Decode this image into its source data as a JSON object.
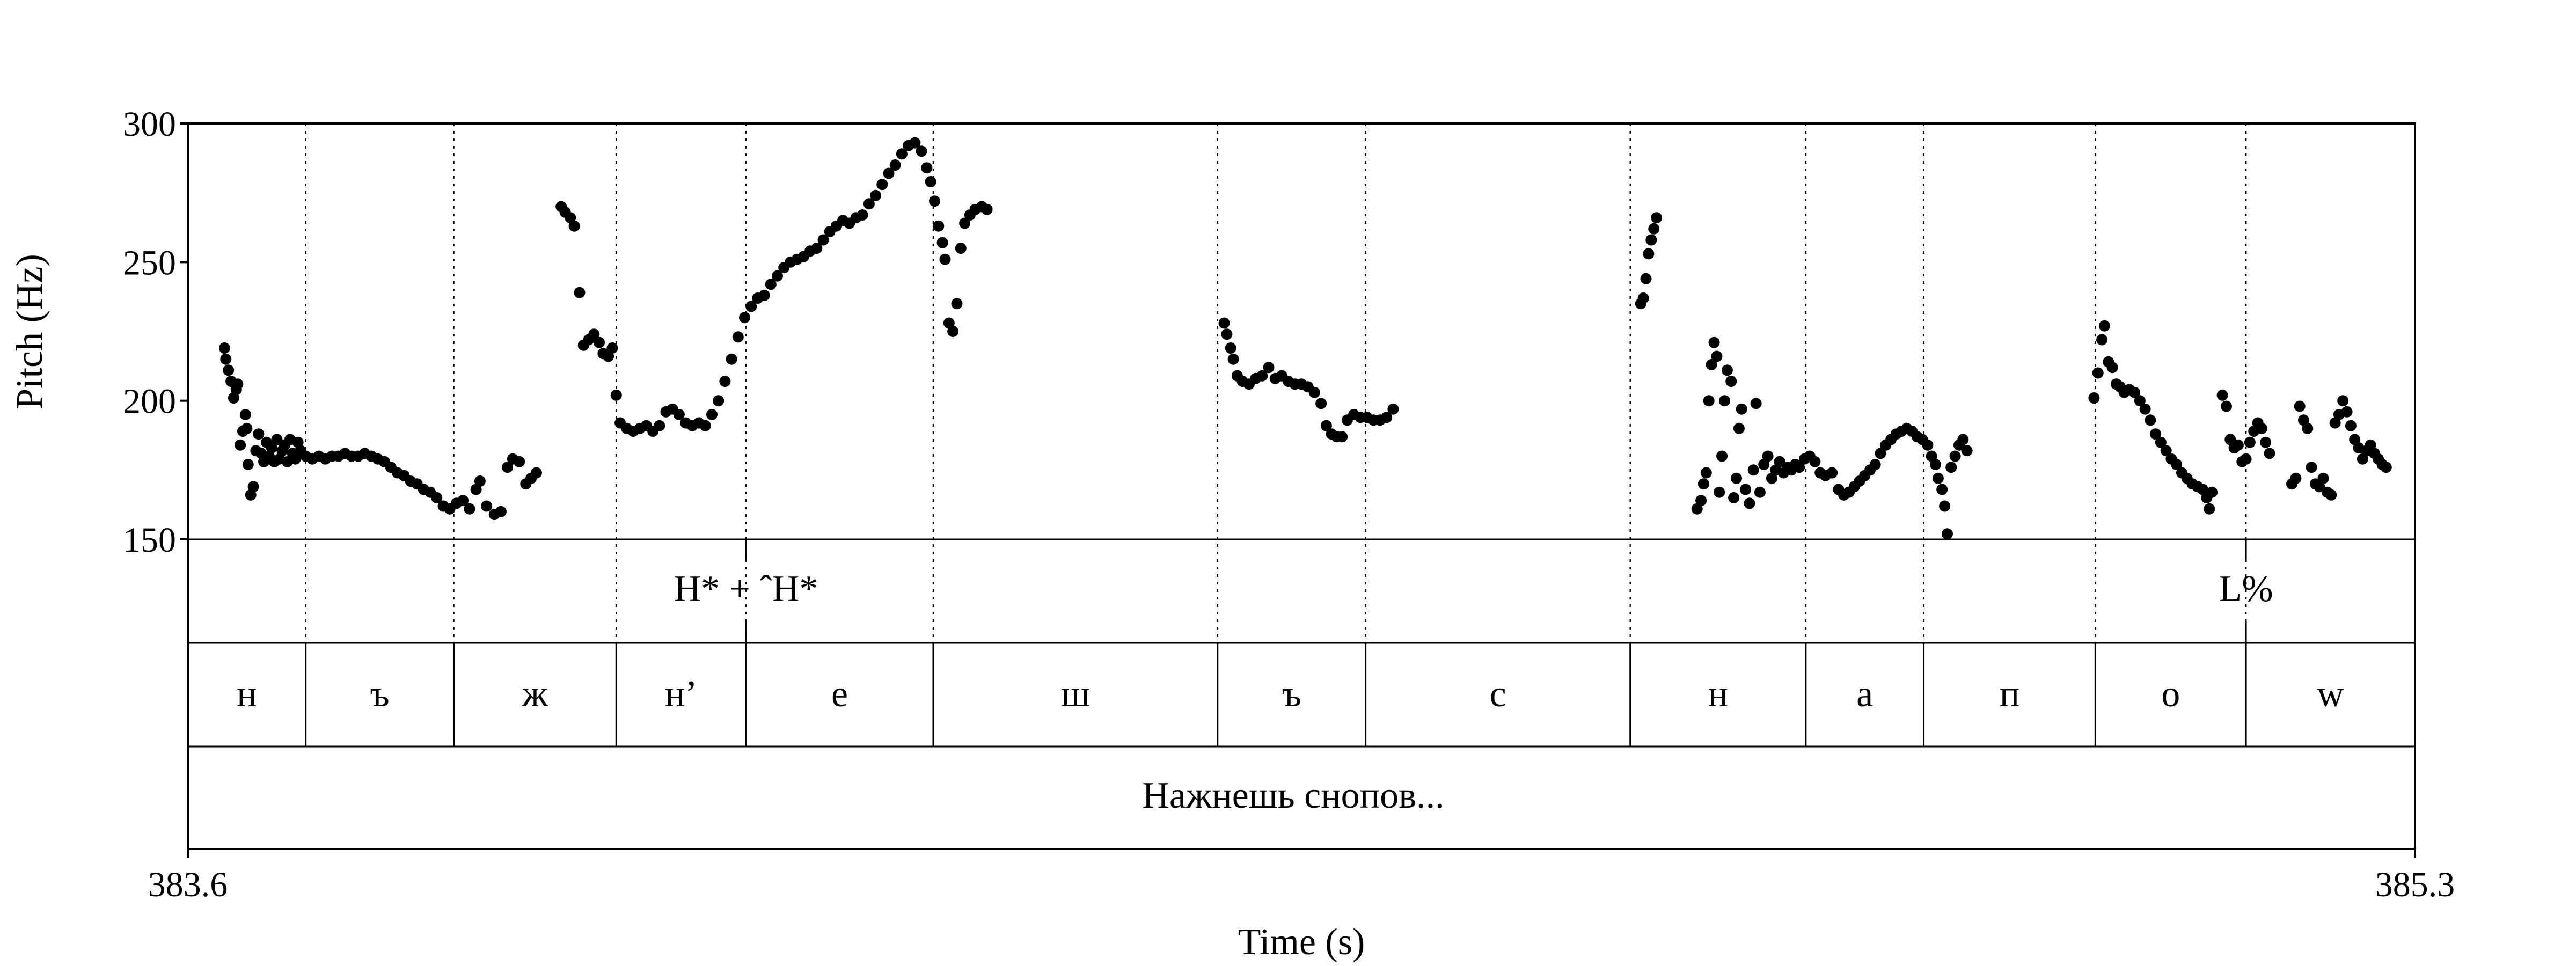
{
  "chart_data": {
    "type": "scatter",
    "xlabel": "Time (s)",
    "ylabel": "Pitch (Hz)",
    "xlim": [
      383.6,
      385.3
    ],
    "ylim": [
      150,
      300
    ],
    "x_ticks": [
      "383.6",
      "385.3"
    ],
    "y_ticks": [
      {
        "value": 300,
        "label": "300"
      },
      {
        "value": 250,
        "label": "250"
      },
      {
        "value": 200,
        "label": "200"
      },
      {
        "value": 150,
        "label": "150"
      }
    ],
    "boundaries": [
      383.69,
      383.803,
      383.927,
      384.026,
      384.169,
      384.386,
      384.499,
      384.701,
      384.835,
      384.925,
      385.056,
      385.171
    ],
    "tones": [
      {
        "time": 384.026,
        "label": "H* + ˆH*"
      },
      {
        "time": 385.171,
        "label": "L%"
      }
    ],
    "segments": [
      {
        "start": 383.6,
        "end": 383.69,
        "label": "н"
      },
      {
        "start": 383.69,
        "end": 383.803,
        "label": "ъ"
      },
      {
        "start": 383.803,
        "end": 383.927,
        "label": "ж"
      },
      {
        "start": 383.927,
        "end": 384.026,
        "label": "н’"
      },
      {
        "start": 384.026,
        "end": 384.169,
        "label": "е"
      },
      {
        "start": 384.169,
        "end": 384.386,
        "label": "ш"
      },
      {
        "start": 384.386,
        "end": 384.499,
        "label": "ъ"
      },
      {
        "start": 384.499,
        "end": 384.701,
        "label": "с"
      },
      {
        "start": 384.701,
        "end": 384.835,
        "label": "н"
      },
      {
        "start": 384.835,
        "end": 384.925,
        "label": "а"
      },
      {
        "start": 384.925,
        "end": 385.056,
        "label": "п"
      },
      {
        "start": 385.056,
        "end": 385.171,
        "label": "о"
      },
      {
        "start": 385.171,
        "end": 385.3,
        "label": "w"
      }
    ],
    "phrase": "Нажнешь снопов...",
    "pitch_points": [
      [
        383.628,
        219
      ],
      [
        383.629,
        215
      ],
      [
        383.631,
        211
      ],
      [
        383.633,
        207
      ],
      [
        383.635,
        201
      ],
      [
        383.637,
        204
      ],
      [
        383.638,
        206
      ],
      [
        383.64,
        184
      ],
      [
        383.642,
        189
      ],
      [
        383.644,
        195
      ],
      [
        383.645,
        190
      ],
      [
        383.646,
        177
      ],
      [
        383.648,
        166
      ],
      [
        383.65,
        169
      ],
      [
        383.652,
        182
      ],
      [
        383.654,
        188
      ],
      [
        383.656,
        181
      ],
      [
        383.658,
        178
      ],
      [
        383.66,
        185
      ],
      [
        383.662,
        180
      ],
      [
        383.664,
        183
      ],
      [
        383.666,
        178
      ],
      [
        383.668,
        186
      ],
      [
        383.67,
        179
      ],
      [
        383.672,
        182
      ],
      [
        383.674,
        184
      ],
      [
        383.676,
        178
      ],
      [
        383.678,
        186
      ],
      [
        383.68,
        181
      ],
      [
        383.682,
        179
      ],
      [
        383.684,
        185
      ],
      [
        383.686,
        182
      ],
      [
        383.69,
        180
      ],
      [
        383.695,
        179
      ],
      [
        383.7,
        180
      ],
      [
        383.705,
        179
      ],
      [
        383.71,
        180
      ],
      [
        383.715,
        180
      ],
      [
        383.72,
        181
      ],
      [
        383.725,
        180
      ],
      [
        383.73,
        180
      ],
      [
        383.735,
        181
      ],
      [
        383.74,
        180
      ],
      [
        383.745,
        179
      ],
      [
        383.75,
        178
      ],
      [
        383.755,
        176
      ],
      [
        383.76,
        174
      ],
      [
        383.765,
        173
      ],
      [
        383.77,
        171
      ],
      [
        383.775,
        170
      ],
      [
        383.78,
        168
      ],
      [
        383.785,
        167
      ],
      [
        383.79,
        165
      ],
      [
        383.795,
        162
      ],
      [
        383.8,
        161
      ],
      [
        383.805,
        163
      ],
      [
        383.81,
        164
      ],
      [
        383.815,
        161
      ],
      [
        383.82,
        168
      ],
      [
        383.823,
        171
      ],
      [
        383.828,
        162
      ],
      [
        383.834,
        159
      ],
      [
        383.839,
        160
      ],
      [
        383.844,
        176
      ],
      [
        383.848,
        179
      ],
      [
        383.853,
        178
      ],
      [
        383.858,
        170
      ],
      [
        383.862,
        172
      ],
      [
        383.866,
        174
      ],
      [
        383.885,
        270
      ],
      [
        383.888,
        268
      ],
      [
        383.892,
        266
      ],
      [
        383.895,
        263
      ],
      [
        383.899,
        239
      ],
      [
        383.902,
        220
      ],
      [
        383.906,
        222
      ],
      [
        383.91,
        224
      ],
      [
        383.914,
        221
      ],
      [
        383.917,
        217
      ],
      [
        383.921,
        216
      ],
      [
        383.924,
        219
      ],
      [
        383.927,
        202
      ],
      [
        383.93,
        192
      ],
      [
        383.935,
        190
      ],
      [
        383.94,
        189
      ],
      [
        383.945,
        190
      ],
      [
        383.95,
        191
      ],
      [
        383.955,
        189
      ],
      [
        383.96,
        191
      ],
      [
        383.965,
        196
      ],
      [
        383.97,
        197
      ],
      [
        383.975,
        195
      ],
      [
        383.98,
        192
      ],
      [
        383.985,
        191
      ],
      [
        383.99,
        192
      ],
      [
        383.995,
        191
      ],
      [
        384.0,
        195
      ],
      [
        384.005,
        200
      ],
      [
        384.01,
        207
      ],
      [
        384.015,
        215
      ],
      [
        384.02,
        223
      ],
      [
        384.025,
        230
      ],
      [
        384.03,
        234
      ],
      [
        384.035,
        237
      ],
      [
        384.04,
        238
      ],
      [
        384.045,
        242
      ],
      [
        384.05,
        245
      ],
      [
        384.055,
        248
      ],
      [
        384.06,
        250
      ],
      [
        384.065,
        251
      ],
      [
        384.07,
        252
      ],
      [
        384.075,
        254
      ],
      [
        384.08,
        255
      ],
      [
        384.085,
        258
      ],
      [
        384.09,
        261
      ],
      [
        384.095,
        263
      ],
      [
        384.1,
        265
      ],
      [
        384.105,
        264
      ],
      [
        384.11,
        266
      ],
      [
        384.115,
        267
      ],
      [
        384.12,
        271
      ],
      [
        384.125,
        274
      ],
      [
        384.13,
        278
      ],
      [
        384.135,
        282
      ],
      [
        384.14,
        285
      ],
      [
        384.145,
        289
      ],
      [
        384.15,
        292
      ],
      [
        384.155,
        293
      ],
      [
        384.16,
        290
      ],
      [
        384.164,
        284
      ],
      [
        384.167,
        279
      ],
      [
        384.17,
        272
      ],
      [
        384.173,
        263
      ],
      [
        384.176,
        257
      ],
      [
        384.178,
        251
      ],
      [
        384.181,
        228
      ],
      [
        384.184,
        225
      ],
      [
        384.187,
        235
      ],
      [
        384.19,
        255
      ],
      [
        384.193,
        264
      ],
      [
        384.197,
        267
      ],
      [
        384.201,
        269
      ],
      [
        384.206,
        270
      ],
      [
        384.21,
        269
      ],
      [
        384.391,
        228
      ],
      [
        384.393,
        224
      ],
      [
        384.396,
        219
      ],
      [
        384.398,
        215
      ],
      [
        384.401,
        209
      ],
      [
        384.405,
        207
      ],
      [
        384.41,
        206
      ],
      [
        384.415,
        208
      ],
      [
        384.42,
        209
      ],
      [
        384.425,
        212
      ],
      [
        384.43,
        208
      ],
      [
        384.435,
        209
      ],
      [
        384.44,
        207
      ],
      [
        384.445,
        206
      ],
      [
        384.45,
        206
      ],
      [
        384.455,
        205
      ],
      [
        384.46,
        203
      ],
      [
        384.465,
        199
      ],
      [
        384.469,
        191
      ],
      [
        384.473,
        188
      ],
      [
        384.477,
        187
      ],
      [
        384.481,
        187
      ],
      [
        384.485,
        193
      ],
      [
        384.49,
        195
      ],
      [
        384.495,
        194
      ],
      [
        384.5,
        194
      ],
      [
        384.505,
        193
      ],
      [
        384.51,
        193
      ],
      [
        384.515,
        194
      ],
      [
        384.52,
        197
      ],
      [
        384.709,
        235
      ],
      [
        384.711,
        237
      ],
      [
        384.713,
        244
      ],
      [
        384.715,
        253
      ],
      [
        384.717,
        258
      ],
      [
        384.719,
        262
      ],
      [
        384.721,
        266
      ],
      [
        384.752,
        161
      ],
      [
        384.755,
        164
      ],
      [
        384.757,
        170
      ],
      [
        384.759,
        174
      ],
      [
        384.761,
        200
      ],
      [
        384.763,
        213
      ],
      [
        384.765,
        221
      ],
      [
        384.767,
        216
      ],
      [
        384.769,
        167
      ],
      [
        384.771,
        180
      ],
      [
        384.773,
        200
      ],
      [
        384.775,
        211
      ],
      [
        384.778,
        207
      ],
      [
        384.78,
        165
      ],
      [
        384.782,
        172
      ],
      [
        384.784,
        190
      ],
      [
        384.786,
        197
      ],
      [
        384.789,
        168
      ],
      [
        384.792,
        163
      ],
      [
        384.795,
        175
      ],
      [
        384.797,
        199
      ],
      [
        384.8,
        167
      ],
      [
        384.803,
        177
      ],
      [
        384.806,
        180
      ],
      [
        384.809,
        172
      ],
      [
        384.812,
        175
      ],
      [
        384.815,
        178
      ],
      [
        384.818,
        174
      ],
      [
        384.821,
        176
      ],
      [
        384.824,
        175
      ],
      [
        384.827,
        177
      ],
      [
        384.83,
        176
      ],
      [
        384.834,
        179
      ],
      [
        384.838,
        180
      ],
      [
        384.842,
        178
      ],
      [
        384.846,
        174
      ],
      [
        384.85,
        173
      ],
      [
        384.855,
        174
      ],
      [
        384.86,
        168
      ],
      [
        384.864,
        166
      ],
      [
        384.868,
        167
      ],
      [
        384.872,
        169
      ],
      [
        384.876,
        171
      ],
      [
        384.88,
        173
      ],
      [
        384.884,
        175
      ],
      [
        384.888,
        177
      ],
      [
        384.892,
        181
      ],
      [
        384.896,
        184
      ],
      [
        384.9,
        186
      ],
      [
        384.904,
        188
      ],
      [
        384.908,
        189
      ],
      [
        384.912,
        190
      ],
      [
        384.916,
        189
      ],
      [
        384.92,
        187
      ],
      [
        384.924,
        186
      ],
      [
        384.928,
        184
      ],
      [
        384.931,
        180
      ],
      [
        384.934,
        177
      ],
      [
        384.936,
        172
      ],
      [
        384.939,
        168
      ],
      [
        384.941,
        162
      ],
      [
        384.943,
        152
      ],
      [
        384.946,
        176
      ],
      [
        384.949,
        180
      ],
      [
        384.952,
        184
      ],
      [
        384.955,
        186
      ],
      [
        384.958,
        182
      ],
      [
        385.055,
        201
      ],
      [
        385.058,
        210
      ],
      [
        385.061,
        222
      ],
      [
        385.063,
        227
      ],
      [
        385.066,
        214
      ],
      [
        385.069,
        212
      ],
      [
        385.072,
        206
      ],
      [
        385.075,
        205
      ],
      [
        385.078,
        203
      ],
      [
        385.082,
        204
      ],
      [
        385.086,
        203
      ],
      [
        385.09,
        200
      ],
      [
        385.094,
        197
      ],
      [
        385.098,
        193
      ],
      [
        385.102,
        188
      ],
      [
        385.106,
        185
      ],
      [
        385.11,
        182
      ],
      [
        385.114,
        179
      ],
      [
        385.118,
        177
      ],
      [
        385.122,
        174
      ],
      [
        385.126,
        172
      ],
      [
        385.13,
        170
      ],
      [
        385.134,
        169
      ],
      [
        385.138,
        168
      ],
      [
        385.141,
        165
      ],
      [
        385.143,
        161
      ],
      [
        385.145,
        167
      ],
      [
        385.153,
        202
      ],
      [
        385.156,
        198
      ],
      [
        385.159,
        186
      ],
      [
        385.162,
        183
      ],
      [
        385.165,
        184
      ],
      [
        385.168,
        178
      ],
      [
        385.171,
        179
      ],
      [
        385.174,
        185
      ],
      [
        385.177,
        189
      ],
      [
        385.18,
        192
      ],
      [
        385.183,
        190
      ],
      [
        385.186,
        185
      ],
      [
        385.189,
        181
      ],
      [
        385.206,
        170
      ],
      [
        385.209,
        172
      ],
      [
        385.212,
        198
      ],
      [
        385.215,
        193
      ],
      [
        385.218,
        190
      ],
      [
        385.221,
        176
      ],
      [
        385.224,
        170
      ],
      [
        385.227,
        169
      ],
      [
        385.23,
        172
      ],
      [
        385.233,
        167
      ],
      [
        385.236,
        166
      ],
      [
        385.239,
        192
      ],
      [
        385.242,
        195
      ],
      [
        385.245,
        200
      ],
      [
        385.248,
        196
      ],
      [
        385.251,
        191
      ],
      [
        385.254,
        186
      ],
      [
        385.257,
        183
      ],
      [
        385.26,
        179
      ],
      [
        385.263,
        182
      ],
      [
        385.266,
        184
      ],
      [
        385.269,
        181
      ],
      [
        385.272,
        179
      ],
      [
        385.275,
        177
      ],
      [
        385.278,
        176
      ]
    ]
  }
}
